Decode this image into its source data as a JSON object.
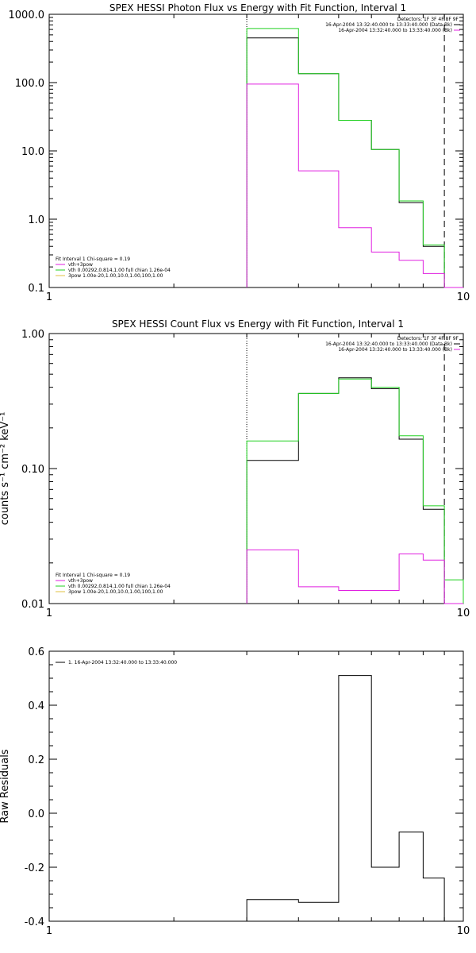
{
  "chart_data": [
    {
      "type": "line",
      "title": "SPEX HESSI Photon Flux vs Energy with Fit Function, Interval 1",
      "xlabel": "",
      "ylabel": "",
      "xscale": "log",
      "yscale": "log",
      "xlim": [
        1,
        10
      ],
      "ylim": [
        0.1,
        1000
      ],
      "x_ticks": [
        "1",
        "10"
      ],
      "y_ticks": [
        "0.1",
        "1.0",
        "10.0",
        "100.0",
        "1000.0"
      ],
      "x_edges": [
        3,
        4,
        5,
        6,
        7,
        8,
        9,
        10
      ],
      "markers": [
        {
          "x": 3,
          "style": "dotted"
        },
        {
          "x": 9,
          "style": "dashed"
        }
      ],
      "legend_right": [
        {
          "text": "Detectors: 1F 3F 4F 8F 9F",
          "color": ""
        },
        {
          "text": "16-Apr-2004 13:32:40.000 to 13:33:40.000 (Data-Bk)",
          "color": "#000000"
        },
        {
          "text": "16-Apr-2004 13:32:40.000 to 13:33:40.000 (Bk)",
          "color": "#e020e0"
        }
      ],
      "legend_left": [
        {
          "text": "Fit Interval 1    Chi-square = 0.19",
          "color": ""
        },
        {
          "text": "vth+3pow",
          "color": "#e020e0"
        },
        {
          "text": "vth 0.00292,0.814,1.00   full chian 1.26e-04",
          "color": "#20d020"
        },
        {
          "text": "3pow 1.00e-20,1.00,10.0,1.00,100,1.00",
          "color": "#e0c040"
        }
      ],
      "series": [
        {
          "color": "#000000",
          "values": [
            450,
            135,
            28,
            10.5,
            1.75,
            0.4,
            0.1
          ]
        },
        {
          "color": "#20d020",
          "values": [
            620,
            135,
            28,
            10.5,
            1.85,
            0.42,
            0.1
          ]
        },
        {
          "color": "#e020e0",
          "values": [
            95,
            5.1,
            0.75,
            0.33,
            0.25,
            0.16,
            0.1
          ]
        }
      ]
    },
    {
      "type": "line",
      "title": "SPEX HESSI Count Flux vs Energy with Fit Function, Interval 1",
      "xlabel": "",
      "ylabel": "counts s⁻¹ cm⁻² keV⁻¹",
      "xscale": "log",
      "yscale": "log",
      "xlim": [
        1,
        10
      ],
      "ylim": [
        0.01,
        1
      ],
      "x_ticks": [
        "1",
        "10"
      ],
      "y_ticks": [
        "0.01",
        "0.10",
        "1.00"
      ],
      "x_edges": [
        3,
        4,
        5,
        6,
        7,
        8,
        9,
        10
      ],
      "markers": [
        {
          "x": 3,
          "style": "dotted"
        },
        {
          "x": 9,
          "style": "dashed"
        }
      ],
      "legend_right": [
        {
          "text": "Detectors: 1F 3F 4F 8F 9F",
          "color": ""
        },
        {
          "text": "16-Apr-2004 13:32:40.000 to 13:33:40.000 (Data-Bk)",
          "color": "#000000"
        },
        {
          "text": "16-Apr-2004 13:32:40.000 to 13:33:40.000 (Bk)",
          "color": "#e020e0"
        }
      ],
      "legend_left": [
        {
          "text": "Fit Interval 1    Chi-square = 0.19",
          "color": ""
        },
        {
          "text": "vth+3pow",
          "color": "#e020e0"
        },
        {
          "text": "vth 0.00292,0.814,1.00   full chian 1.26e-04",
          "color": "#20d020"
        },
        {
          "text": "3pow 1.00e-20,1.00,10.0,1.00,100,1.00",
          "color": "#e0c040"
        }
      ],
      "series": [
        {
          "color": "#000000",
          "values": [
            0.115,
            0.36,
            0.47,
            0.39,
            0.165,
            0.05,
            0.01
          ]
        },
        {
          "color": "#20d020",
          "values": [
            0.16,
            0.36,
            0.46,
            0.4,
            0.175,
            0.053,
            0.015
          ]
        },
        {
          "color": "#e020e0",
          "values": [
            0.025,
            0.0133,
            0.0125,
            0.0125,
            0.0233,
            0.021,
            0.01
          ]
        }
      ]
    },
    {
      "type": "line",
      "title": "",
      "xlabel": "",
      "ylabel": "Raw Residuals",
      "xscale": "log",
      "yscale": "linear",
      "xlim": [
        1,
        10
      ],
      "ylim": [
        -0.4,
        0.6
      ],
      "x_ticks": [
        "1",
        "10"
      ],
      "y_ticks": [
        "-0.4",
        "-0.2",
        "0.0",
        "0.2",
        "0.4",
        "0.6"
      ],
      "x_edges": [
        3,
        4,
        5,
        6,
        7,
        8,
        9
      ],
      "legend_left_top": [
        {
          "text": "1. 16-Apr-2004 13:32:40.000 to 13:33:40.000",
          "color": "#000000"
        }
      ],
      "series": [
        {
          "color": "#000000",
          "values": [
            -0.32,
            -0.33,
            0.51,
            -0.2,
            -0.07,
            -0.24
          ]
        }
      ]
    }
  ]
}
